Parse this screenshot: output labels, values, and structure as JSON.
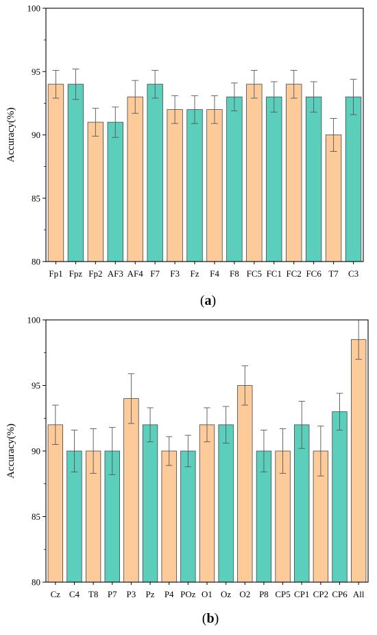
{
  "colors": {
    "bar_a": "#FDCB9A",
    "bar_b": "#5BCFBC",
    "edge": "#444444",
    "error": "#555555",
    "axis": "#000000"
  },
  "chart_data": [
    {
      "type": "bar",
      "panel_label_prefix": "(",
      "panel_label_letter": "a",
      "panel_label_suffix": ")",
      "ylabel": "Accuracy(%)",
      "xlabel": "",
      "ylim": [
        80,
        100
      ],
      "yticks": [
        80,
        85,
        90,
        95,
        100
      ],
      "grid": false,
      "categories": [
        "Fp1",
        "Fpz",
        "Fp2",
        "AF3",
        "AF4",
        "F7",
        "F3",
        "Fz",
        "F4",
        "F8",
        "FC5",
        "FC1",
        "FC2",
        "FC6",
        "T7",
        "C3"
      ],
      "values": [
        94,
        94,
        91,
        91,
        93,
        94,
        92,
        92,
        92,
        93,
        94,
        93,
        94,
        93,
        90,
        93
      ],
      "errors": [
        1.1,
        1.2,
        1.1,
        1.2,
        1.3,
        1.1,
        1.1,
        1.1,
        1.1,
        1.1,
        1.1,
        1.2,
        1.1,
        1.2,
        1.3,
        1.4
      ],
      "bar_colors": [
        "bar_a",
        "bar_b",
        "bar_a",
        "bar_b",
        "bar_a",
        "bar_b",
        "bar_a",
        "bar_b",
        "bar_a",
        "bar_b",
        "bar_a",
        "bar_b",
        "bar_a",
        "bar_b",
        "bar_a",
        "bar_b"
      ]
    },
    {
      "type": "bar",
      "panel_label_prefix": "(",
      "panel_label_letter": "b",
      "panel_label_suffix": ")",
      "ylabel": "Accuracy(%)",
      "xlabel": "",
      "ylim": [
        80,
        100
      ],
      "yticks": [
        80,
        85,
        90,
        95,
        100
      ],
      "grid": false,
      "categories": [
        "Cz",
        "C4",
        "T8",
        "P7",
        "P3",
        "Pz",
        "P4",
        "POz",
        "O1",
        "Oz",
        "O2",
        "P8",
        "CP5",
        "CP1",
        "CP2",
        "CP6",
        "All"
      ],
      "values": [
        92,
        90,
        90,
        90,
        94,
        92,
        90,
        90,
        92,
        92,
        95,
        90,
        90,
        92,
        90,
        93,
        98.5
      ],
      "errors": [
        1.5,
        1.6,
        1.7,
        1.8,
        1.9,
        1.3,
        1.1,
        1.2,
        1.3,
        1.4,
        1.5,
        1.6,
        1.7,
        1.8,
        1.9,
        1.4,
        1.5
      ],
      "bar_colors": [
        "bar_a",
        "bar_b",
        "bar_a",
        "bar_b",
        "bar_a",
        "bar_b",
        "bar_a",
        "bar_b",
        "bar_a",
        "bar_b",
        "bar_a",
        "bar_b",
        "bar_a",
        "bar_b",
        "bar_a",
        "bar_b",
        "bar_a"
      ]
    }
  ]
}
